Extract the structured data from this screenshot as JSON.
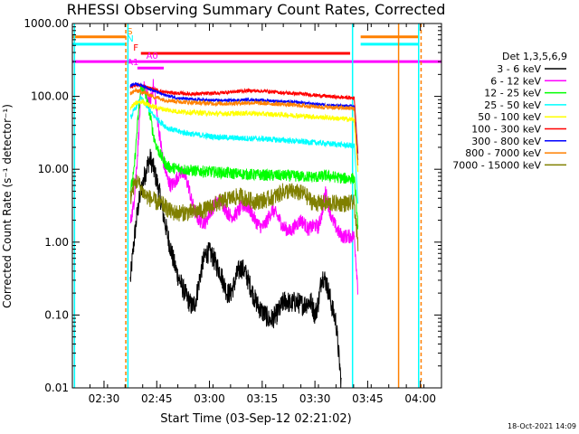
{
  "chart_data": {
    "type": "line",
    "title": "RHESSI Observing Summary Count Rates, Corrected",
    "xlabel": "Start Time (03-Sep-12 02:21:02)",
    "ylabel": "Corrected Count Rate (s⁻¹ detector⁻¹)",
    "yscale": "log",
    "ylim": [
      0.01,
      1000
    ],
    "xlim_minutes_since_0221": [
      0,
      105
    ],
    "x_ticks": [
      {
        "label": "02:30",
        "t": 9
      },
      {
        "label": "02:45",
        "t": 24
      },
      {
        "label": "03:00",
        "t": 39
      },
      {
        "label": "03:15",
        "t": 54
      },
      {
        "label": "03:30",
        "t": 69
      },
      {
        "label": "03:45",
        "t": 84
      },
      {
        "label": "04:00",
        "t": 99
      }
    ],
    "y_ticks": [
      "1000.00",
      "100.00",
      "10.00",
      "1.00",
      "0.10",
      "0.01"
    ],
    "y_tick_values": [
      1000,
      100,
      10,
      1,
      0.1,
      0.01
    ],
    "legend_title": "Det 1,3,5,6,9",
    "legend_position": "right",
    "series": [
      {
        "name": "3 - 6 keV",
        "color": "#000000",
        "noise": 0.15,
        "points": [
          [
            16.5,
            0.3
          ],
          [
            17.5,
            1.0
          ],
          [
            18.5,
            2.6
          ],
          [
            19.5,
            5.0
          ],
          [
            20.5,
            8.0
          ],
          [
            21.5,
            12.0
          ],
          [
            22.2,
            14.0
          ],
          [
            23,
            10.5
          ],
          [
            24,
            7.0
          ],
          [
            25,
            4.2
          ],
          [
            26,
            2.2
          ],
          [
            27,
            1.3
          ],
          [
            28,
            0.8
          ],
          [
            29,
            0.5
          ],
          [
            30,
            0.35
          ],
          [
            31,
            0.26
          ],
          [
            32,
            0.2
          ],
          [
            33,
            0.16
          ],
          [
            34,
            0.13
          ],
          [
            35,
            0.15
          ],
          [
            36,
            0.28
          ],
          [
            37,
            0.5
          ],
          [
            38,
            0.7
          ],
          [
            39,
            0.72
          ],
          [
            40,
            0.62
          ],
          [
            41,
            0.48
          ],
          [
            42,
            0.4
          ],
          [
            43,
            0.28
          ],
          [
            44,
            0.2
          ],
          [
            45,
            0.2
          ],
          [
            46,
            0.26
          ],
          [
            47,
            0.38
          ],
          [
            48,
            0.45
          ],
          [
            49,
            0.4
          ],
          [
            50,
            0.3
          ],
          [
            51,
            0.22
          ],
          [
            52,
            0.16
          ],
          [
            53,
            0.13
          ],
          [
            54,
            0.11
          ],
          [
            55,
            0.1
          ],
          [
            56,
            0.085
          ],
          [
            57,
            0.09
          ],
          [
            58,
            0.1
          ],
          [
            59,
            0.12
          ],
          [
            60,
            0.15
          ],
          [
            61,
            0.16
          ],
          [
            62,
            0.14
          ],
          [
            63,
            0.15
          ],
          [
            64,
            0.15
          ],
          [
            65,
            0.14
          ],
          [
            66,
            0.14
          ],
          [
            67,
            0.15
          ],
          [
            68,
            0.15
          ],
          [
            69,
            0.1
          ],
          [
            70,
            0.15
          ],
          [
            71,
            0.35
          ],
          [
            72,
            0.3
          ],
          [
            73,
            0.2
          ],
          [
            74,
            0.12
          ],
          [
            75,
            0.08
          ],
          [
            76.5,
            0.011
          ]
        ]
      },
      {
        "name": "6 - 12 keV",
        "color": "#ff00ff",
        "noise": 0.1,
        "points": [
          [
            16.5,
            1.8
          ],
          [
            17.5,
            3.5
          ],
          [
            18.5,
            15.0
          ],
          [
            19,
            40.0
          ],
          [
            19.5,
            110.0
          ],
          [
            20.2,
            140.0
          ],
          [
            21,
            110.0
          ],
          [
            22,
            80.0
          ],
          [
            23,
            140.0
          ],
          [
            23.5,
            110.0
          ],
          [
            24,
            60.0
          ],
          [
            25,
            25.0
          ],
          [
            26,
            12.0
          ],
          [
            27,
            7.5
          ],
          [
            28,
            6.0
          ],
          [
            29,
            6.5
          ],
          [
            30,
            8.0
          ],
          [
            31,
            9.5
          ],
          [
            32,
            8.0
          ],
          [
            33,
            6.0
          ],
          [
            34,
            3.5
          ],
          [
            35,
            2.5
          ],
          [
            36,
            2.0
          ],
          [
            37,
            1.9
          ],
          [
            38,
            1.9
          ],
          [
            39,
            2.5
          ],
          [
            40,
            3.0
          ],
          [
            41,
            3.5
          ],
          [
            42,
            3.8
          ],
          [
            43,
            3.2
          ],
          [
            44,
            2.6
          ],
          [
            45,
            2.3
          ],
          [
            46,
            2.3
          ],
          [
            47,
            2.6
          ],
          [
            48,
            3.0
          ],
          [
            49,
            3.2
          ],
          [
            50,
            3.0
          ],
          [
            51,
            2.5
          ],
          [
            52,
            2.0
          ],
          [
            53,
            1.7
          ],
          [
            54,
            1.6
          ],
          [
            55,
            1.8
          ],
          [
            56,
            2.3
          ],
          [
            57,
            2.8
          ],
          [
            58,
            2.4
          ],
          [
            59,
            2.0
          ],
          [
            60,
            1.6
          ],
          [
            61,
            1.5
          ],
          [
            62,
            1.4
          ],
          [
            63,
            1.6
          ],
          [
            64,
            1.8
          ],
          [
            65,
            2.0
          ],
          [
            66,
            1.8
          ],
          [
            67,
            1.5
          ],
          [
            68,
            1.6
          ],
          [
            69,
            1.7
          ],
          [
            70,
            1.6
          ],
          [
            71,
            2.5
          ],
          [
            72,
            5.0
          ],
          [
            73,
            3.0
          ],
          [
            74,
            2.0
          ],
          [
            75,
            1.6
          ],
          [
            76,
            1.3
          ],
          [
            77,
            1.2
          ],
          [
            79,
            1.2
          ],
          [
            80.2,
            1.2
          ],
          [
            81.3,
            0.2
          ]
        ]
      },
      {
        "name": "12 - 25 keV",
        "color": "#00ff00",
        "noise": 0.08,
        "points": [
          [
            16.5,
            5.0
          ],
          [
            17.5,
            9.0
          ],
          [
            18.5,
            40.0
          ],
          [
            19.5,
            130.0
          ],
          [
            20.5,
            120.0
          ],
          [
            22,
            60.0
          ],
          [
            23,
            30.0
          ],
          [
            24,
            20.0
          ],
          [
            25,
            16.0
          ],
          [
            26,
            13.0
          ],
          [
            27,
            11.0
          ],
          [
            28,
            10.5
          ],
          [
            30,
            10.2
          ],
          [
            35,
            9.5
          ],
          [
            40,
            9.2
          ],
          [
            45,
            8.8
          ],
          [
            50,
            8.5
          ],
          [
            55,
            8.3
          ],
          [
            60,
            8.2
          ],
          [
            65,
            8.0
          ],
          [
            70,
            7.8
          ],
          [
            72,
            8.2
          ],
          [
            75,
            7.8
          ],
          [
            77,
            7.5
          ],
          [
            80.2,
            7.5
          ],
          [
            81.3,
            1.5
          ]
        ]
      },
      {
        "name": "25 - 50 keV",
        "color": "#00ffff",
        "noise": 0.04,
        "points": [
          [
            16.5,
            50.0
          ],
          [
            18,
            70.0
          ],
          [
            19.5,
            95.0
          ],
          [
            21,
            75.0
          ],
          [
            23,
            55.0
          ],
          [
            25,
            45.0
          ],
          [
            27,
            37.0
          ],
          [
            30,
            33.0
          ],
          [
            35,
            30.0
          ],
          [
            40,
            28.0
          ],
          [
            45,
            27.0
          ],
          [
            50,
            26.5
          ],
          [
            55,
            26.0
          ],
          [
            60,
            25.0
          ],
          [
            65,
            24.0
          ],
          [
            70,
            23.0
          ],
          [
            75,
            22.0
          ],
          [
            80.2,
            21.0
          ],
          [
            81.3,
            3.0
          ]
        ]
      },
      {
        "name": "50 - 100 keV",
        "color": "#ffff00",
        "noise": 0.035,
        "points": [
          [
            16.5,
            70.0
          ],
          [
            18,
            80.0
          ],
          [
            20,
            85.0
          ],
          [
            22,
            75.0
          ],
          [
            24,
            70.0
          ],
          [
            27,
            65.0
          ],
          [
            30,
            62.0
          ],
          [
            35,
            60.0
          ],
          [
            40,
            58.0
          ],
          [
            45,
            58.0
          ],
          [
            50,
            59.0
          ],
          [
            55,
            57.0
          ],
          [
            60,
            56.0
          ],
          [
            65,
            54.0
          ],
          [
            70,
            52.0
          ],
          [
            75,
            50.0
          ],
          [
            80.2,
            48.0
          ],
          [
            81.3,
            8.0
          ]
        ]
      },
      {
        "name": "100 - 300 keV",
        "color": "#ff0000",
        "noise": 0.025,
        "points": [
          [
            16.5,
            130.0
          ],
          [
            18,
            145.0
          ],
          [
            20,
            140.0
          ],
          [
            23,
            125.0
          ],
          [
            26,
            115.0
          ],
          [
            30,
            110.0
          ],
          [
            35,
            108.0
          ],
          [
            40,
            110.0
          ],
          [
            45,
            115.0
          ],
          [
            50,
            120.0
          ],
          [
            55,
            118.0
          ],
          [
            60,
            112.0
          ],
          [
            65,
            108.0
          ],
          [
            70,
            103.0
          ],
          [
            75,
            98.0
          ],
          [
            80.2,
            95.0
          ],
          [
            81.3,
            15.0
          ]
        ]
      },
      {
        "name": "300 - 800 keV",
        "color": "#0000ff",
        "noise": 0.02,
        "points": [
          [
            16.5,
            140.0
          ],
          [
            18,
            150.0
          ],
          [
            20,
            140.0
          ],
          [
            23,
            120.0
          ],
          [
            26,
            105.0
          ],
          [
            30,
            95.0
          ],
          [
            35,
            90.0
          ],
          [
            40,
            88.0
          ],
          [
            45,
            88.0
          ],
          [
            50,
            90.0
          ],
          [
            55,
            88.0
          ],
          [
            60,
            85.0
          ],
          [
            65,
            82.0
          ],
          [
            70,
            78.0
          ],
          [
            75,
            75.0
          ],
          [
            80.2,
            73.0
          ],
          [
            81.3,
            12.0
          ]
        ]
      },
      {
        "name": "800 - 7000 keV",
        "color": "#ff8000",
        "noise": 0.03,
        "points": [
          [
            16.5,
            110.0
          ],
          [
            18,
            120.0
          ],
          [
            20,
            115.0
          ],
          [
            23,
            100.0
          ],
          [
            26,
            90.0
          ],
          [
            30,
            85.0
          ],
          [
            35,
            82.0
          ],
          [
            40,
            80.0
          ],
          [
            45,
            80.0
          ],
          [
            50,
            82.0
          ],
          [
            55,
            80.0
          ],
          [
            60,
            78.0
          ],
          [
            65,
            75.0
          ],
          [
            70,
            72.0
          ],
          [
            75,
            70.0
          ],
          [
            80.2,
            68.0
          ],
          [
            81.3,
            10.0
          ]
        ]
      },
      {
        "name": "7000 - 15000 keV",
        "color": "#808000",
        "noise": 0.12,
        "points": [
          [
            16.5,
            4.0
          ],
          [
            17.5,
            6.0
          ],
          [
            18.5,
            7.0
          ],
          [
            19.5,
            5.5
          ],
          [
            20.5,
            4.5
          ],
          [
            22,
            4.0
          ],
          [
            24,
            3.5
          ],
          [
            26,
            3.2
          ],
          [
            28,
            2.6
          ],
          [
            30,
            2.5
          ],
          [
            35,
            2.6
          ],
          [
            38,
            2.8
          ],
          [
            40,
            3.2
          ],
          [
            45,
            4.0
          ],
          [
            48,
            4.3
          ],
          [
            50,
            3.8
          ],
          [
            52,
            3.6
          ],
          [
            55,
            3.8
          ],
          [
            58,
            4.3
          ],
          [
            60,
            5.0
          ],
          [
            62,
            5.0
          ],
          [
            64,
            4.8
          ],
          [
            66,
            4.6
          ],
          [
            68,
            3.6
          ],
          [
            70,
            3.4
          ],
          [
            75,
            3.4
          ],
          [
            80.2,
            3.4
          ],
          [
            81.3,
            0.8
          ]
        ]
      }
    ],
    "flag_markers": [
      {
        "label": "S",
        "color": "#ff8000",
        "y": 655,
        "segments": [
          [
            0,
            15.2
          ],
          [
            82,
            98.5
          ]
        ]
      },
      {
        "label": "N",
        "color": "#00ffff",
        "y": 520,
        "segments": [
          [
            0,
            15.2
          ],
          [
            82,
            98.5
          ]
        ]
      },
      {
        "label": "F",
        "color": "#ff0000",
        "y": 390,
        "segments": [
          [
            19.5,
            79
          ]
        ]
      },
      {
        "label": "A0",
        "color": "#ff00ff",
        "y": 300,
        "segments": [
          [
            0,
            105
          ]
        ]
      },
      {
        "label": "A1",
        "color": "#ff00ff",
        "y": 245,
        "segments": [
          [
            18.5,
            26
          ]
        ]
      }
    ],
    "vertical_markers": [
      {
        "t": 0.6,
        "color": "#00ffff",
        "style": "solid"
      },
      {
        "t": 15.2,
        "color": "#ff8000",
        "style": "dashed"
      },
      {
        "t": 15.8,
        "color": "#00ffff",
        "style": "solid"
      },
      {
        "t": 79.7,
        "color": "#00ffff",
        "style": "solid"
      },
      {
        "t": 92.8,
        "color": "#ff8000",
        "style": "solid"
      },
      {
        "t": 98.5,
        "color": "#00ffff",
        "style": "solid"
      },
      {
        "t": 99.2,
        "color": "#ff8000",
        "style": "dashed"
      }
    ],
    "footer_date": "18-Oct-2021 14:09"
  }
}
